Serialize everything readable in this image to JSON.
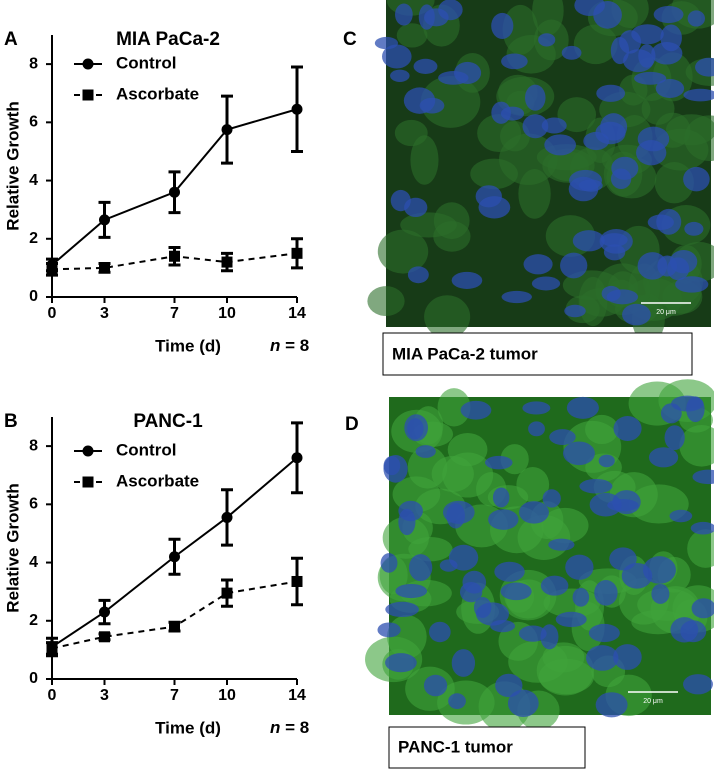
{
  "chart_data": [
    {
      "type": "line",
      "panel": "A",
      "title": "MIA PaCa-2",
      "xlabel": "Time (d)",
      "ylabel": "Relative Growth",
      "annotation": "n = 8",
      "x": [
        0,
        3,
        7,
        10,
        14
      ],
      "xlim": [
        0,
        14
      ],
      "xticks": [
        0,
        3,
        7,
        10,
        14
      ],
      "ylim": [
        0,
        9
      ],
      "yticks": [
        0,
        2,
        4,
        6,
        8
      ],
      "series": [
        {
          "name": "Control",
          "color": "#000000",
          "marker": "circle",
          "dashed": false,
          "values": [
            1.1,
            2.65,
            3.6,
            5.75,
            6.45
          ],
          "errors": [
            0.2,
            0.6,
            0.7,
            1.15,
            1.45
          ]
        },
        {
          "name": "Ascorbate",
          "color": "#000000",
          "marker": "square",
          "dashed": true,
          "values": [
            0.95,
            1.0,
            1.4,
            1.2,
            1.5
          ],
          "errors": [
            0.2,
            0.15,
            0.3,
            0.3,
            0.5
          ]
        }
      ]
    },
    {
      "type": "line",
      "panel": "B",
      "title": "PANC-1",
      "xlabel": "Time (d)",
      "ylabel": "Relative Growth",
      "annotation": "n = 8",
      "x": [
        0,
        3,
        7,
        10,
        14
      ],
      "xlim": [
        0,
        14
      ],
      "xticks": [
        0,
        3,
        7,
        10,
        14
      ],
      "ylim": [
        0,
        9
      ],
      "yticks": [
        0,
        2,
        4,
        6,
        8
      ],
      "series": [
        {
          "name": "Control",
          "color": "#000000",
          "marker": "circle",
          "dashed": false,
          "values": [
            1.1,
            2.3,
            4.2,
            5.55,
            7.6
          ],
          "errors": [
            0.3,
            0.4,
            0.6,
            0.95,
            1.2
          ]
        },
        {
          "name": "Ascorbate",
          "color": "#000000",
          "marker": "square",
          "dashed": true,
          "values": [
            1.05,
            1.45,
            1.8,
            2.95,
            3.35
          ],
          "errors": [
            0.2,
            0.1,
            0.15,
            0.45,
            0.8
          ]
        }
      ]
    }
  ],
  "panels": [
    {
      "label": "C",
      "caption": "MIA PaCa-2 tumor",
      "scale_bar": "20 μm"
    },
    {
      "label": "D",
      "caption": "PANC-1 tumor",
      "scale_bar": "20 μm"
    }
  ]
}
